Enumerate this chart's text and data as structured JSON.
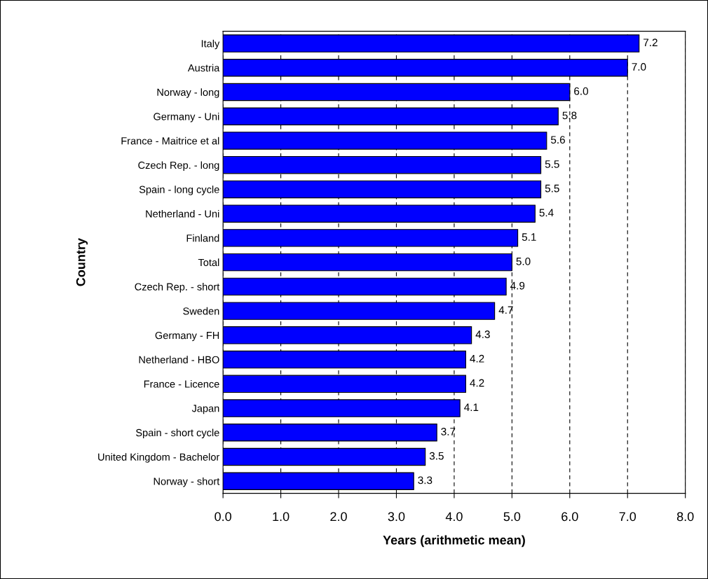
{
  "chart_data": {
    "type": "bar",
    "orientation": "horizontal",
    "xlabel": "Years (arithmetic mean)",
    "ylabel": "Country",
    "categories": [
      "Italy",
      "Austria",
      "Norway - long",
      "Germany - Uni",
      "France - Maitrice et al",
      "Czech Rep. - long",
      "Spain - long cycle",
      "Netherland - Uni",
      "Finland",
      "Total",
      "Czech Rep. - short",
      "Sweden",
      "Germany - FH",
      "Netherland - HBO",
      "France - Licence",
      "Japan",
      "Spain - short cycle",
      "United Kingdom - Bachelor",
      "Norway - short"
    ],
    "values": [
      7.2,
      7.0,
      6.0,
      5.8,
      5.6,
      5.5,
      5.5,
      5.4,
      5.1,
      5.0,
      4.9,
      4.7,
      4.3,
      4.2,
      4.2,
      4.1,
      3.7,
      3.5,
      3.3
    ],
    "value_labels": [
      "7.2",
      "7.0",
      "6.0",
      "5.8",
      "5.6",
      "5.5",
      "5.5",
      "5.4",
      "5.1",
      "5.0",
      "4.9",
      "4.7",
      "4.3",
      "4.2",
      "4.2",
      "4.1",
      "3.7",
      "3.5",
      "3.3"
    ],
    "color": "#0000ff",
    "xlim": [
      0,
      8
    ],
    "xticks": [
      {
        "value": 0,
        "label": "0.0"
      },
      {
        "value": 1,
        "label": "1.0"
      },
      {
        "value": 2,
        "label": "2.0"
      },
      {
        "value": 3,
        "label": "3.0"
      },
      {
        "value": 4,
        "label": "4.0"
      },
      {
        "value": 5,
        "label": "5.0"
      },
      {
        "value": 6,
        "label": "6.0"
      },
      {
        "value": 7,
        "label": "7.0"
      },
      {
        "value": 8,
        "label": "8.0"
      }
    ],
    "grid": "x",
    "legend": false
  }
}
